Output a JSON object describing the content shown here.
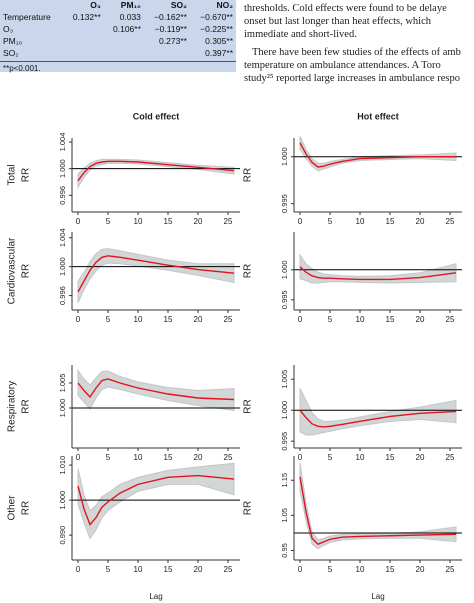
{
  "table": {
    "header": [
      "",
      "O₃",
      "PM₁₀",
      "SO₂",
      "NO₂"
    ],
    "rows": [
      [
        "Temperature",
        "0.132**",
        "0.033",
        "−0.162**",
        "−0.670**"
      ],
      [
        "O₃",
        "",
        "0.106**",
        "−0.119**",
        "−0.225**"
      ],
      [
        "PM₁₀",
        "",
        "",
        "0.273**",
        "0.305**"
      ],
      [
        "SO₂",
        "",
        "",
        "",
        "0.397**"
      ]
    ],
    "footnote": "**p<0.001."
  },
  "text": {
    "lines": [
      "thresholds. Cold effects were found to be delaye",
      "onset but last longer than heat effects, which",
      "immediate and short-lived."
    ],
    "lines2": [
      "There have been few studies of the effects of amb",
      "temperature on ambulance attendances. A Toro",
      "study²⁵ reported large increases in ambulance respo"
    ]
  },
  "figure": {
    "column_titles": [
      "Cold effect",
      "Hot effect"
    ],
    "row_labels": [
      "Total",
      "Cardiovascular",
      "Respiratory",
      "Other"
    ],
    "ylabel": "RR",
    "xlabel": "Lag",
    "xlim": [
      -1,
      27
    ],
    "xticks": [
      0,
      5,
      10,
      15,
      20,
      25
    ],
    "reference": 1,
    "lags": [
      0,
      1,
      2,
      3,
      4,
      5,
      7,
      10,
      15,
      20,
      26
    ],
    "panels": [
      {
        "ylim": [
          0.9935,
          1.0046
        ],
        "yticks": [
          {
            "value": 0.996,
            "label": "0.996"
          },
          {
            "value": 1,
            "label": "1.000"
          },
          {
            "value": 1.004,
            "label": "1.004"
          }
        ],
        "rr": [
          0.9982,
          0.9994,
          1.0003,
          1.0008,
          1.001,
          1.0011,
          1.0011,
          1.001,
          1.0006,
          1.0002,
          0.9997
        ],
        "lower": [
          0.9972,
          0.9987,
          0.9998,
          1.0004,
          1.0006,
          1.0008,
          1.0008,
          1.0007,
          1.0003,
          0.9999,
          0.9992
        ],
        "upper": [
          0.9992,
          1.0001,
          1.0008,
          1.0012,
          1.0014,
          1.0014,
          1.0014,
          1.0013,
          1.0009,
          1.0005,
          1.0002
        ]
      },
      {
        "ylim": [
          0.9941,
          1.002
        ],
        "yticks": [
          {
            "value": 0.995,
            "label": "0.995"
          },
          {
            "value": 1,
            "label": "1.000"
          }
        ],
        "rr": [
          1.0015,
          1.0003,
          0.9994,
          0.9989,
          0.999,
          0.9992,
          0.9995,
          0.9998,
          0.9999,
          1,
          1
        ],
        "lower": [
          1.0008,
          0.9998,
          0.999,
          0.9985,
          0.9987,
          0.9989,
          0.9993,
          0.9996,
          0.9997,
          0.9998,
          0.9996
        ],
        "upper": [
          1.0022,
          1.0008,
          0.9998,
          0.9993,
          0.9993,
          0.9995,
          0.9997,
          1,
          1.0001,
          1.0002,
          1.0004
        ]
      },
      {
        "ylim": [
          0.994,
          1.0048
        ],
        "yticks": [
          {
            "value": 0.996,
            "label": "0.996"
          },
          {
            "value": 1,
            "label": "1.000"
          },
          {
            "value": 1.004,
            "label": "1.004"
          }
        ],
        "rr": [
          0.9965,
          0.998,
          0.9995,
          1.0006,
          1.0013,
          1.0015,
          1.0013,
          1.0009,
          1.0002,
          0.9996,
          0.9991
        ],
        "lower": [
          0.995,
          0.9968,
          0.9983,
          0.9994,
          1.0002,
          1.0005,
          1.0004,
          1.0001,
          0.9995,
          0.9988,
          0.9978
        ],
        "upper": [
          0.998,
          0.9992,
          1.0007,
          1.0018,
          1.0024,
          1.0025,
          1.0022,
          1.0017,
          1.0009,
          1.0004,
          1.0004
        ]
      },
      {
        "ylim": [
          0.9933,
          1.0063
        ],
        "yticks": [
          {
            "value": 0.995,
            "label": "0.995"
          },
          {
            "value": 1,
            "label": "1.000"
          }
        ],
        "rr": [
          1.0005,
          0.9996,
          0.999,
          0.9987,
          0.9986,
          0.9986,
          0.9985,
          0.9984,
          0.9984,
          0.9987,
          0.9995
        ],
        "lower": [
          0.9985,
          0.9982,
          0.9978,
          0.9978,
          0.9979,
          0.998,
          0.998,
          0.9979,
          0.9978,
          0.9979,
          0.998
        ],
        "upper": [
          1.0025,
          1.001,
          1.0002,
          0.9996,
          0.9993,
          0.9992,
          0.999,
          0.9989,
          0.999,
          0.9995,
          1.001
        ]
      },
      {
        "ylim": [
          0.992,
          1.0086
        ],
        "yticks": [
          {
            "value": 1,
            "label": "1.000"
          },
          {
            "value": 1.005,
            "label": "1.005"
          }
        ],
        "rr": [
          1.005,
          1.0035,
          1.0022,
          1.004,
          1.0055,
          1.0058,
          1.005,
          1.004,
          1.0028,
          1.002,
          1.0017
        ],
        "lower": [
          1.0025,
          1.0012,
          0.9998,
          1.002,
          1.0037,
          1.0042,
          1.0037,
          1.0028,
          1.0015,
          1.0005,
          0.9995
        ],
        "upper": [
          1.0075,
          1.0058,
          1.0046,
          1.006,
          1.0073,
          1.0074,
          1.0063,
          1.0052,
          1.0041,
          1.0035,
          1.0039
        ]
      },
      {
        "ylim": [
          0.9939,
          1.0073
        ],
        "yticks": [
          {
            "value": 0.995,
            "label": "0.995"
          },
          {
            "value": 1,
            "label": "1.000"
          },
          {
            "value": 1.005,
            "label": "1.005"
          }
        ],
        "rr": [
          1,
          0.9988,
          0.9978,
          0.9974,
          0.9973,
          0.9974,
          0.9977,
          0.9982,
          0.999,
          0.9995,
          0.9998
        ],
        "lower": [
          0.9965,
          0.996,
          0.996,
          0.9962,
          0.9964,
          0.9966,
          0.997,
          0.9975,
          0.9982,
          0.9985,
          0.998
        ],
        "upper": [
          1.0035,
          1.0016,
          0.9996,
          0.9986,
          0.9982,
          0.9982,
          0.9984,
          0.9989,
          0.9998,
          1.0005,
          1.0016
        ]
      },
      {
        "ylim": [
          0.9829,
          1.0126
        ],
        "yticks": [
          {
            "value": 0.99,
            "label": "0.990"
          },
          {
            "value": 1,
            "label": "1.000"
          },
          {
            "value": 1.01,
            "label": "1.010"
          }
        ],
        "rr": [
          1.004,
          0.9975,
          0.993,
          0.995,
          0.998,
          0.9995,
          1.002,
          1.0045,
          1.0065,
          1.007,
          1.006
        ],
        "lower": [
          0.999,
          0.9935,
          0.989,
          0.9915,
          0.995,
          0.997,
          0.9995,
          1.0025,
          1.0045,
          1.0045,
          1.0015
        ],
        "upper": [
          1.009,
          1.0015,
          0.997,
          0.9985,
          1.001,
          1.002,
          1.0045,
          1.0065,
          1.0085,
          1.0095,
          1.0105
        ]
      },
      {
        "ylim": [
          0.923,
          1.219
        ],
        "yticks": [
          0.95,
          1.05,
          1.15
        ],
        "rr": [
          1.16,
          1.06,
          0.985,
          0.968,
          0.975,
          0.982,
          0.988,
          0.99,
          0.992,
          0.994,
          0.996
        ],
        "lower": [
          1.12,
          1.035,
          0.968,
          0.955,
          0.965,
          0.973,
          0.98,
          0.983,
          0.985,
          0.985,
          0.975
        ],
        "upper": [
          1.2,
          1.085,
          1.002,
          0.981,
          0.985,
          0.991,
          0.996,
          0.997,
          0.999,
          1.003,
          1.017
        ]
      }
    ]
  }
}
